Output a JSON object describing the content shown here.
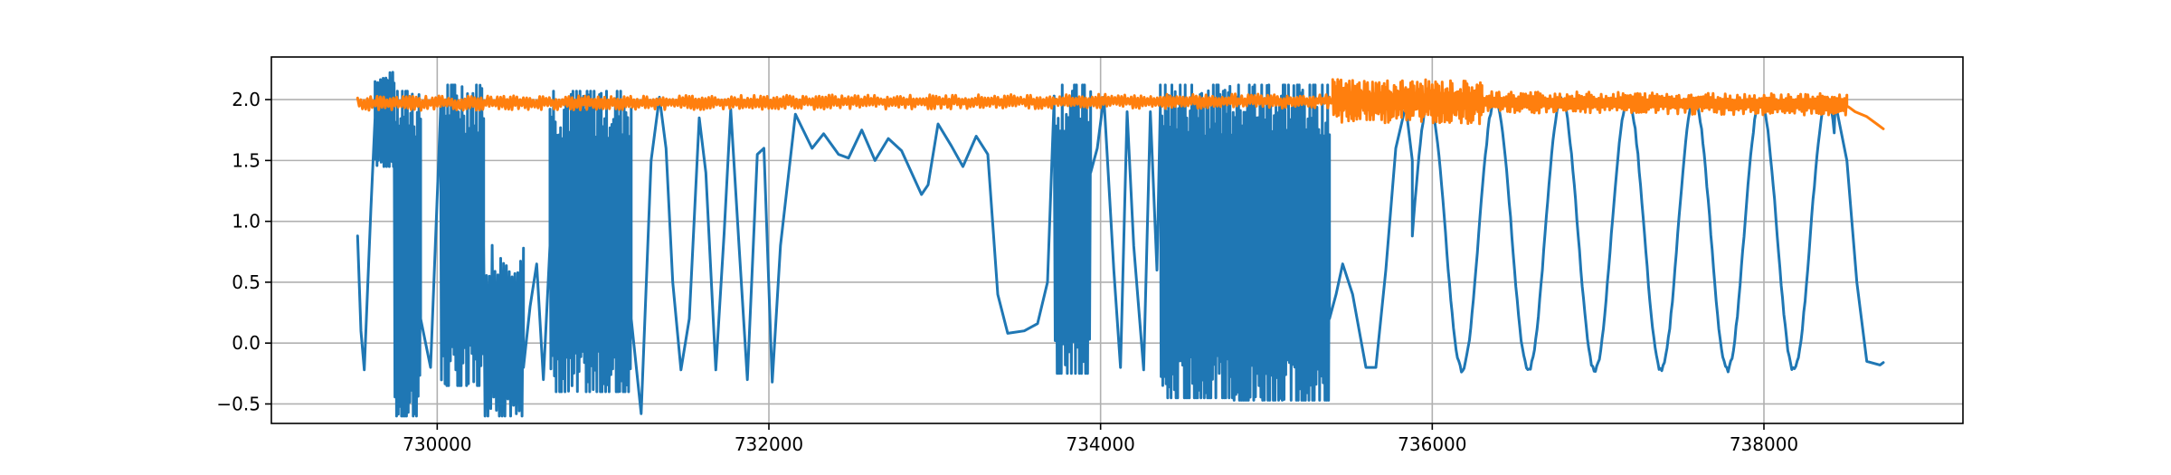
{
  "chart_data": {
    "type": "line",
    "title": "",
    "xlabel": "",
    "ylabel": "",
    "xlim": [
      729000,
      739200
    ],
    "ylim": [
      -0.66,
      2.35
    ],
    "grid": true,
    "legend": "none",
    "x_ticks": [
      730000,
      732000,
      734000,
      736000,
      738000
    ],
    "x_tick_labels": [
      "730000",
      "732000",
      "734000",
      "736000",
      "738000"
    ],
    "y_ticks": [
      -0.5,
      0.0,
      0.5,
      1.0,
      1.5,
      2.0
    ],
    "y_tick_labels": [
      "−0.5",
      "0.0",
      "0.5",
      "1.0",
      "1.5",
      "2.0"
    ],
    "series": [
      {
        "color": "#1f77b4",
        "segments": [
          {
            "kind": "points",
            "points": [
              [
                729520,
                0.88
              ],
              [
                729540,
                0.1
              ],
              [
                729560,
                -0.22
              ],
              [
                729600,
                1.1
              ],
              [
                729625,
                1.85
              ]
            ]
          },
          {
            "kind": "osc",
            "x0": 729625,
            "x1": 729740,
            "lo": 1.5,
            "hi": 2.15,
            "n": 14
          },
          {
            "kind": "osc",
            "x0": 729740,
            "x1": 729900,
            "lo": -0.55,
            "hi": 1.95,
            "n": 16
          },
          {
            "kind": "points",
            "points": [
              [
                729900,
                0.2
              ],
              [
                729960,
                -0.2
              ],
              [
                730020,
                1.9
              ]
            ]
          },
          {
            "kind": "osc",
            "x0": 730020,
            "x1": 730280,
            "lo": -0.3,
            "hi": 2.0,
            "n": 24
          },
          {
            "kind": "osc",
            "x0": 730280,
            "x1": 730520,
            "lo": -0.55,
            "hi": 0.7,
            "n": 14
          },
          {
            "kind": "points",
            "points": [
              [
                730520,
                -0.2
              ],
              [
                730560,
                0.3
              ],
              [
                730600,
                0.65
              ],
              [
                730640,
                -0.3
              ],
              [
                730680,
                0.8
              ]
            ]
          },
          {
            "kind": "osc",
            "x0": 730680,
            "x1": 731170,
            "lo": -0.35,
            "hi": 1.95,
            "n": 46
          },
          {
            "kind": "points",
            "points": [
              [
                731170,
                0.2
              ],
              [
                731230,
                -0.58
              ],
              [
                731290,
                1.5
              ],
              [
                731340,
                2.02
              ],
              [
                731380,
                1.6
              ],
              [
                731420,
                0.5
              ],
              [
                731470,
                -0.22
              ],
              [
                731520,
                0.2
              ],
              [
                731580,
                1.85
              ],
              [
                731620,
                1.4
              ],
              [
                731680,
                -0.22
              ],
              [
                731730,
                0.9
              ],
              [
                731770,
                1.92
              ],
              [
                731820,
                0.8
              ],
              [
                731870,
                -0.3
              ],
              [
                731930,
                1.55
              ],
              [
                731970,
                1.6
              ],
              [
                732020,
                -0.32
              ],
              [
                732070,
                0.8
              ],
              [
                732160,
                1.88
              ],
              [
                732260,
                1.6
              ],
              [
                732330,
                1.72
              ],
              [
                732420,
                1.55
              ],
              [
                732480,
                1.52
              ],
              [
                732560,
                1.75
              ],
              [
                732640,
                1.5
              ],
              [
                732720,
                1.68
              ],
              [
                732800,
                1.58
              ],
              [
                732920,
                1.22
              ],
              [
                732960,
                1.3
              ],
              [
                733020,
                1.8
              ],
              [
                733100,
                1.62
              ],
              [
                733170,
                1.45
              ],
              [
                733250,
                1.7
              ],
              [
                733320,
                1.55
              ],
              [
                733380,
                0.4
              ],
              [
                733440,
                0.08
              ],
              [
                733540,
                0.1
              ],
              [
                733620,
                0.16
              ],
              [
                733680,
                0.5
              ],
              [
                733720,
                2.0
              ]
            ]
          },
          {
            "kind": "osc",
            "x0": 733720,
            "x1": 733940,
            "lo": -0.2,
            "hi": 2.0,
            "n": 18
          },
          {
            "kind": "points",
            "points": [
              [
                733940,
                1.4
              ],
              [
                733980,
                1.6
              ],
              [
                734020,
                2.02
              ],
              [
                734080,
                0.6
              ],
              [
                734120,
                -0.2
              ],
              [
                734160,
                1.9
              ],
              [
                734200,
                0.8
              ],
              [
                734260,
                -0.22
              ],
              [
                734300,
                1.9
              ],
              [
                734340,
                0.6
              ],
              [
                734360,
                1.95
              ]
            ]
          },
          {
            "kind": "osc",
            "x0": 734360,
            "x1": 734800,
            "lo": -0.4,
            "hi": 2.0,
            "n": 44
          },
          {
            "kind": "osc",
            "x0": 734800,
            "x1": 735380,
            "lo": -0.42,
            "hi": 2.0,
            "n": 54
          },
          {
            "kind": "points",
            "points": [
              [
                735380,
                0.2
              ],
              [
                735420,
                0.4
              ],
              [
                735460,
                0.65
              ],
              [
                735520,
                0.4
              ],
              [
                735600,
                -0.2
              ],
              [
                735660,
                -0.2
              ],
              [
                735720,
                0.6
              ],
              [
                735780,
                1.6
              ],
              [
                735840,
                1.95
              ],
              [
                735880,
                1.5
              ]
            ]
          },
          {
            "kind": "wave",
            "x0": 735880,
            "x1": 738430,
            "lo": -0.22,
            "hi": 2.0,
            "period": 400,
            "phase_x": 735980
          },
          {
            "kind": "points",
            "points": [
              [
                738430,
                1.98
              ],
              [
                738500,
                1.5
              ],
              [
                738560,
                0.5
              ],
              [
                738620,
                -0.15
              ],
              [
                738700,
                -0.18
              ],
              [
                738720,
                -0.16
              ]
            ]
          }
        ]
      },
      {
        "color": "#ff7f0e",
        "segments": [
          {
            "kind": "noise",
            "x0": 729520,
            "x1": 735400,
            "base_start": 1.97,
            "base_end": 1.99,
            "amp": 0.06,
            "n": 600
          },
          {
            "kind": "noise",
            "x0": 735400,
            "x1": 736300,
            "base_start": 1.99,
            "base_end": 1.98,
            "amp": 0.18,
            "n": 180
          },
          {
            "kind": "noise",
            "x0": 736300,
            "x1": 738500,
            "base_start": 1.98,
            "base_end": 1.96,
            "amp": 0.09,
            "n": 300
          },
          {
            "kind": "points",
            "points": [
              [
                738500,
                1.95
              ],
              [
                738550,
                1.9
              ],
              [
                738620,
                1.86
              ],
              [
                738680,
                1.8
              ],
              [
                738720,
                1.76
              ]
            ]
          }
        ]
      }
    ]
  }
}
